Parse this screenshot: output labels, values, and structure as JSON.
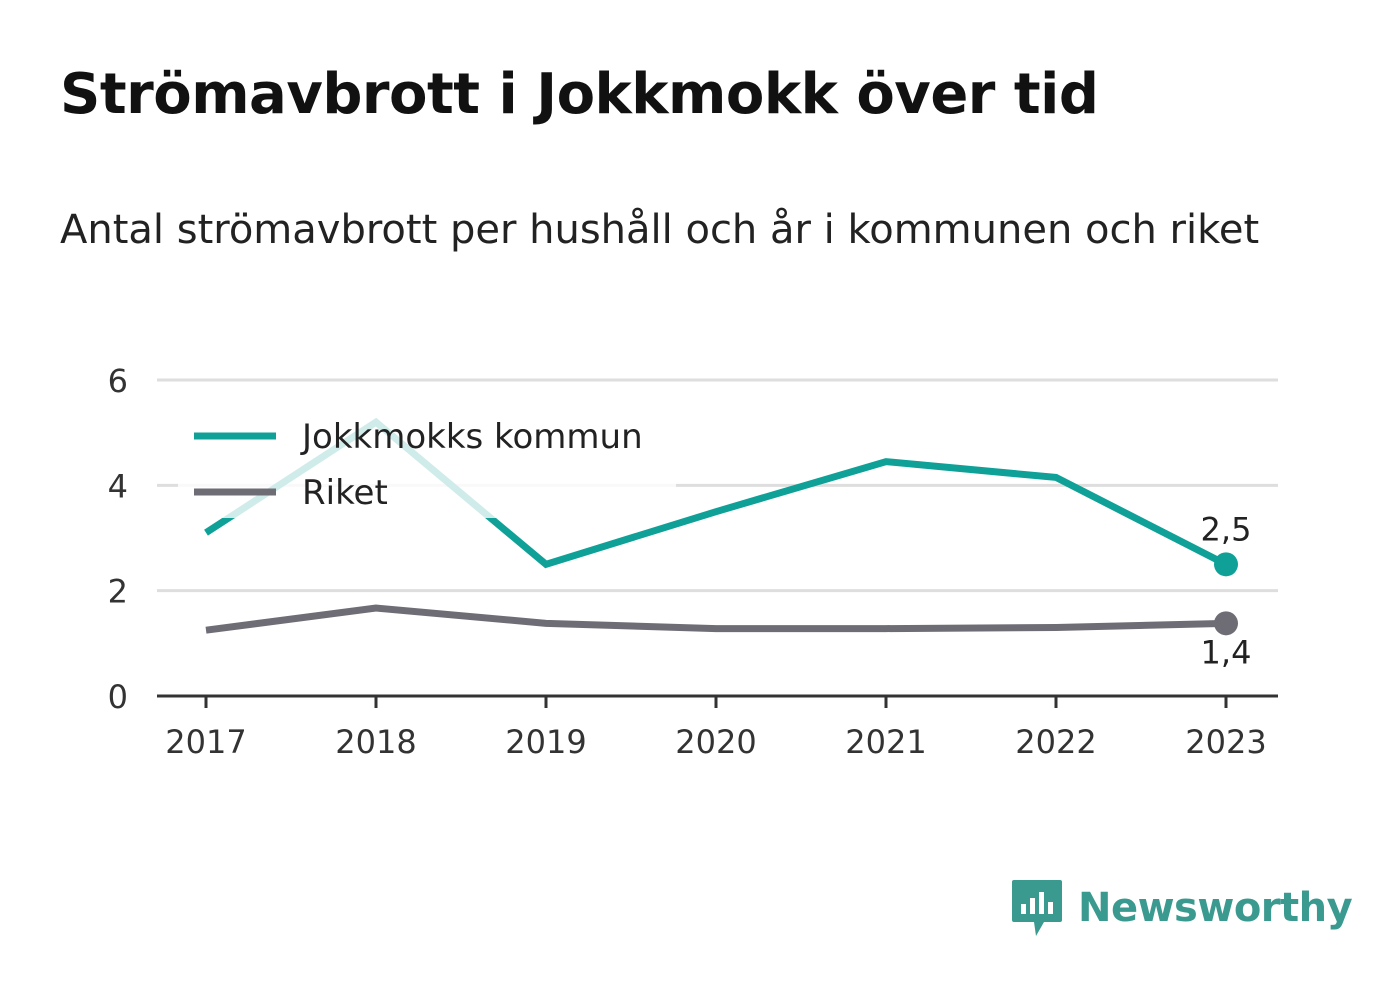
{
  "title": "Strömavbrott i Jokkmokk över tid",
  "subtitle": "Antal strömavbrott per hushåll och år i kommunen och riket",
  "brand": {
    "name": "Newsworthy",
    "icon": "newsworthy-logo-icon",
    "color": "#3b9a90"
  },
  "chart_data": {
    "type": "line",
    "x": [
      "2017",
      "2018",
      "2019",
      "2020",
      "2021",
      "2022",
      "2023"
    ],
    "ylim": [
      0,
      6
    ],
    "yticks": [
      "0",
      "2",
      "4",
      "6"
    ],
    "grid": true,
    "legend_position": "top-left",
    "series": [
      {
        "name": "Jokkmokks kommun",
        "color": "#0fa197",
        "values": [
          3.1,
          5.2,
          2.5,
          3.5,
          4.45,
          4.15,
          2.5
        ],
        "end_label": "2,5"
      },
      {
        "name": "Riket",
        "color": "#6e6d76",
        "values": [
          1.25,
          1.67,
          1.38,
          1.28,
          1.28,
          1.3,
          1.38
        ],
        "end_label": "1,4"
      }
    ]
  }
}
